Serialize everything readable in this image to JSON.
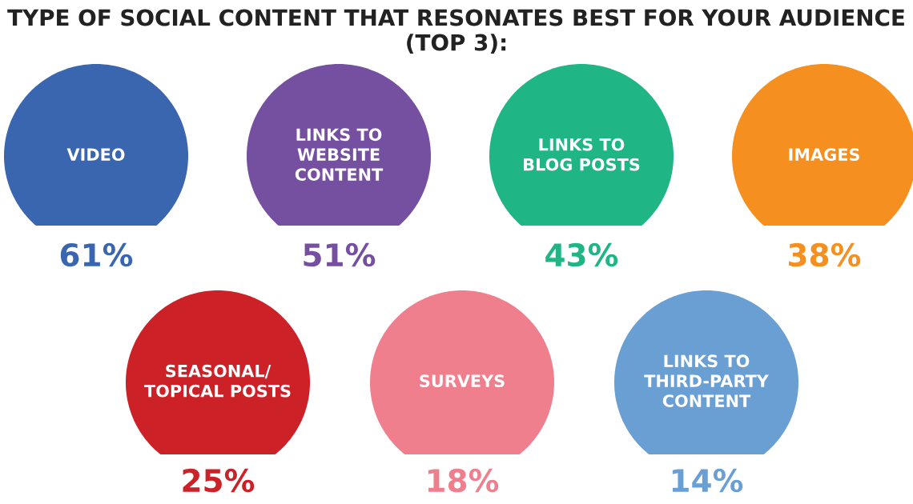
{
  "chart_data": {
    "type": "other",
    "title": "TYPE OF SOCIAL CONTENT THAT RESONATES BEST FOR YOUR AUDIENCE (TOP 3):",
    "categories": [
      "VIDEO",
      "LINKS TO\nWEBSITE\nCONTENT",
      "LINKS TO\nBLOG POSTS",
      "IMAGES",
      "SEASONAL/\nTOPICAL POSTS",
      "SURVEYS",
      "LINKS TO\nTHIRD-PARTY\nCONTENT"
    ],
    "values": [
      61,
      51,
      43,
      38,
      25,
      18,
      14
    ],
    "value_labels": [
      "61%",
      "51%",
      "43%",
      "38%",
      "25%",
      "18%",
      "14%"
    ],
    "colors": [
      "#3a66b0",
      "#7650a0",
      "#1fb585",
      "#f58f20",
      "#cc2127",
      "#f07f8e",
      "#6a9fd4"
    ]
  }
}
